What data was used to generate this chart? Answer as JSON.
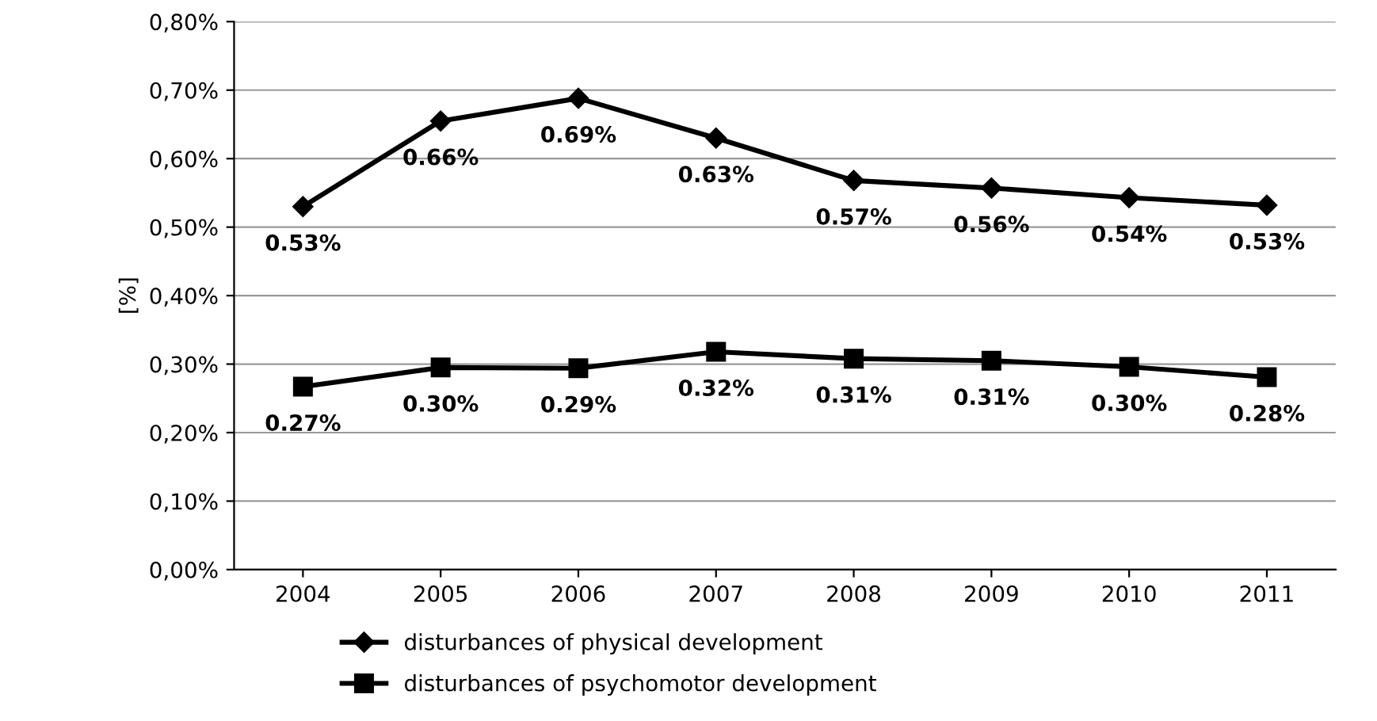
{
  "chart_data": {
    "type": "line",
    "ylabel": "[%]",
    "categories": [
      "2004",
      "2005",
      "2006",
      "2007",
      "2008",
      "2009",
      "2010",
      "2011"
    ],
    "series": [
      {
        "name": "disturbances of physical development",
        "color": "#000000",
        "marker": "diamond",
        "values": [
          0.53,
          0.655,
          0.688,
          0.63,
          0.568,
          0.557,
          0.543,
          0.532
        ],
        "value_labels": [
          "0.53%",
          "0.66%",
          "0.69%",
          "0.63%",
          "0.57%",
          "0.56%",
          "0.54%",
          "0.53%"
        ]
      },
      {
        "name": "disturbances of psychomotor development",
        "color": "#000000",
        "marker": "square",
        "values": [
          0.267,
          0.295,
          0.294,
          0.318,
          0.308,
          0.305,
          0.296,
          0.281
        ],
        "value_labels": [
          "0.27%",
          "0.30%",
          "0.29%",
          "0.32%",
          "0.31%",
          "0.31%",
          "0.30%",
          "0.28%"
        ]
      }
    ],
    "ylim": [
      0,
      0.8
    ],
    "yticks": [
      {
        "value": 0,
        "label": "0,00%"
      },
      {
        "value": 0.1,
        "label": "0,10%"
      },
      {
        "value": 0.2,
        "label": "0,20%"
      },
      {
        "value": 0.3,
        "label": "0,30%"
      },
      {
        "value": 0.4,
        "label": "0,40%"
      },
      {
        "value": 0.5,
        "label": "0,50%"
      },
      {
        "value": 0.6,
        "label": "0,60%"
      },
      {
        "value": 0.7,
        "label": "0,70%"
      },
      {
        "value": 0.8,
        "label": "0,80%"
      }
    ],
    "grid": "y",
    "legend": "bottom",
    "line_style": "solid"
  }
}
